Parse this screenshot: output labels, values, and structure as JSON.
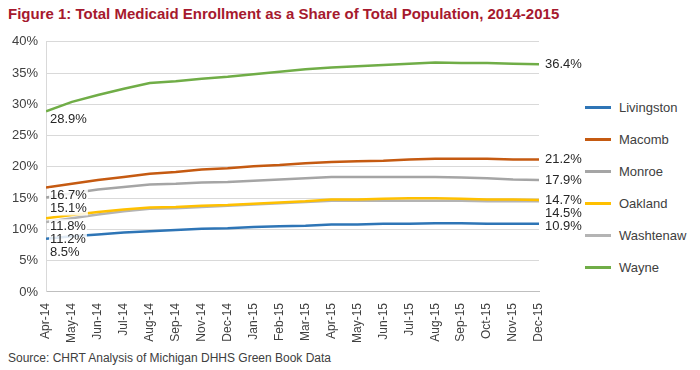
{
  "chart_data": {
    "type": "line",
    "title": "Figure 1: Total Medicaid Enrollment as a Share of Total Population, 2014-2015",
    "source": "Source: CHRT Analysis of Michigan DHHS Green Book Data",
    "categories": [
      "Apr-14",
      "May-14",
      "Jun-14",
      "Jul-14",
      "Aug-14",
      "Sep-14",
      "Nov-14",
      "Dec-14",
      "Jan-15",
      "Feb-15",
      "Mar-15",
      "Apr-15",
      "May-15",
      "Jun-15",
      "Jul-15",
      "Aug-15",
      "Sep-15",
      "Oct-15",
      "Nov-15",
      "Dec-15"
    ],
    "series": [
      {
        "name": "Livingston",
        "color": "#2e75b6",
        "values": [
          8.5,
          8.9,
          9.2,
          9.5,
          9.7,
          9.9,
          10.1,
          10.2,
          10.4,
          10.5,
          10.6,
          10.8,
          10.8,
          10.9,
          10.9,
          11.0,
          11.0,
          10.9,
          10.9,
          10.9
        ],
        "value_labels": [
          "8.5%",
          null,
          null,
          null,
          null,
          null,
          null,
          null,
          null,
          null,
          null,
          null,
          null,
          null,
          null,
          null,
          null,
          null,
          null,
          "10.9%"
        ]
      },
      {
        "name": "Macomb",
        "color": "#c55a11",
        "values": [
          16.7,
          17.3,
          17.9,
          18.4,
          18.9,
          19.2,
          19.6,
          19.8,
          20.1,
          20.3,
          20.6,
          20.8,
          20.9,
          21.0,
          21.2,
          21.3,
          21.3,
          21.3,
          21.2,
          21.2
        ],
        "value_labels": [
          "16.7%",
          null,
          null,
          null,
          null,
          null,
          null,
          null,
          null,
          null,
          null,
          null,
          null,
          null,
          null,
          null,
          null,
          null,
          null,
          "21.2%"
        ]
      },
      {
        "name": "Monroe",
        "color": "#a5a5a5",
        "values": [
          15.1,
          15.8,
          16.4,
          16.8,
          17.2,
          17.3,
          17.5,
          17.6,
          17.8,
          18.0,
          18.2,
          18.4,
          18.4,
          18.4,
          18.4,
          18.4,
          18.3,
          18.2,
          18.0,
          17.9
        ],
        "value_labels": [
          "15.1%",
          null,
          null,
          null,
          null,
          null,
          null,
          null,
          null,
          null,
          null,
          null,
          null,
          null,
          null,
          null,
          null,
          null,
          null,
          "17.9%"
        ]
      },
      {
        "name": "Oakland",
        "color": "#ffc000",
        "values": [
          11.8,
          12.3,
          12.8,
          13.2,
          13.5,
          13.6,
          13.8,
          13.9,
          14.1,
          14.3,
          14.5,
          14.8,
          14.8,
          14.9,
          15.0,
          15.0,
          14.9,
          14.8,
          14.8,
          14.7
        ],
        "value_labels": [
          "11.8%",
          null,
          null,
          null,
          null,
          null,
          null,
          null,
          null,
          null,
          null,
          null,
          null,
          null,
          null,
          null,
          null,
          null,
          null,
          "14.7%"
        ]
      },
      {
        "name": "Washtenaw",
        "color": "#b4b4b4",
        "values": [
          11.2,
          11.8,
          12.4,
          12.9,
          13.3,
          13.4,
          13.6,
          13.8,
          14.0,
          14.2,
          14.4,
          14.6,
          14.6,
          14.6,
          14.6,
          14.6,
          14.6,
          14.5,
          14.5,
          14.5
        ],
        "value_labels": [
          "11.2%",
          null,
          null,
          null,
          null,
          null,
          null,
          null,
          null,
          null,
          null,
          null,
          null,
          null,
          null,
          null,
          null,
          null,
          null,
          "14.5%"
        ]
      },
      {
        "name": "Wayne",
        "color": "#70ad47",
        "values": [
          28.9,
          30.4,
          31.5,
          32.5,
          33.4,
          33.7,
          34.1,
          34.4,
          34.8,
          35.2,
          35.6,
          35.9,
          36.1,
          36.3,
          36.5,
          36.7,
          36.6,
          36.6,
          36.5,
          36.4
        ],
        "value_labels": [
          "28.9%",
          null,
          null,
          null,
          null,
          null,
          null,
          null,
          null,
          null,
          null,
          null,
          null,
          null,
          null,
          null,
          null,
          null,
          null,
          "36.4%"
        ]
      }
    ],
    "ylim": [
      0,
      40
    ],
    "yticks": [
      {
        "value": 0,
        "label": "0%"
      },
      {
        "value": 5,
        "label": "5%"
      },
      {
        "value": 10,
        "label": "10%"
      },
      {
        "value": 15,
        "label": "15%"
      },
      {
        "value": 20,
        "label": "20%"
      },
      {
        "value": 25,
        "label": "25%"
      },
      {
        "value": 30,
        "label": "30%"
      },
      {
        "value": 35,
        "label": "35%"
      },
      {
        "value": 40,
        "label": "40%"
      }
    ],
    "grid": true,
    "legend": "right"
  }
}
